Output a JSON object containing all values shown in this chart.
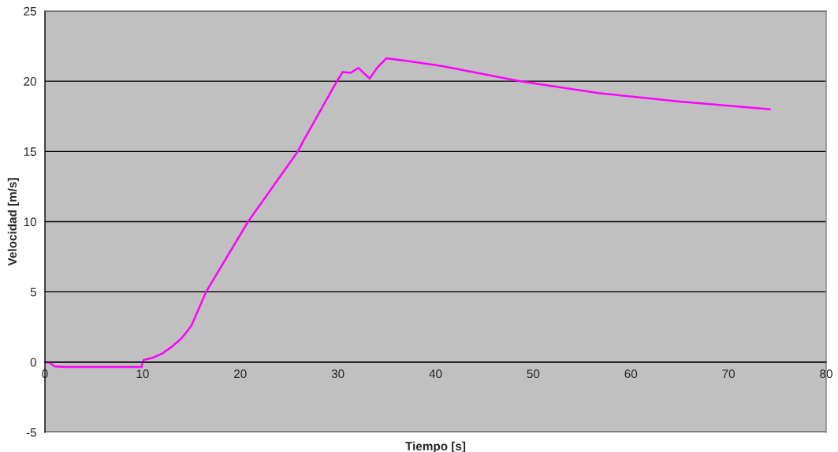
{
  "chart_data": {
    "type": "line",
    "xlabel": "Tiempo [s]",
    "ylabel": "Velocidad [m/s]",
    "xlim": [
      0,
      80
    ],
    "xticks": [
      0,
      10,
      20,
      30,
      40,
      50,
      60,
      70,
      80
    ],
    "ylim": [
      -5,
      25
    ],
    "yticks": [
      -5,
      0,
      5,
      10,
      15,
      20,
      25
    ],
    "grid": "y",
    "series": [
      {
        "color": "#ff00ff",
        "x": [
          0,
          0.5,
          1,
          2,
          5,
          9.9,
          10,
          10.1,
          11,
          12,
          13,
          14,
          15,
          16.5,
          20.8,
          25.9,
          26.5,
          29.9,
          30.5,
          31.3,
          32.1,
          33.25,
          34,
          34.95,
          37,
          40.6,
          48.7,
          56.7,
          64.8,
          74.25
        ],
        "values": [
          0,
          -0.05,
          -0.3,
          -0.35,
          -0.35,
          -0.35,
          0,
          0.15,
          0.3,
          0.6,
          1.1,
          1.7,
          2.6,
          5,
          10,
          15,
          15.8,
          20.0,
          20.66,
          20.6,
          20.94,
          20.19,
          20.94,
          21.63,
          21.45,
          21.09,
          20.0,
          19.16,
          18.56,
          18.0
        ]
      }
    ]
  }
}
